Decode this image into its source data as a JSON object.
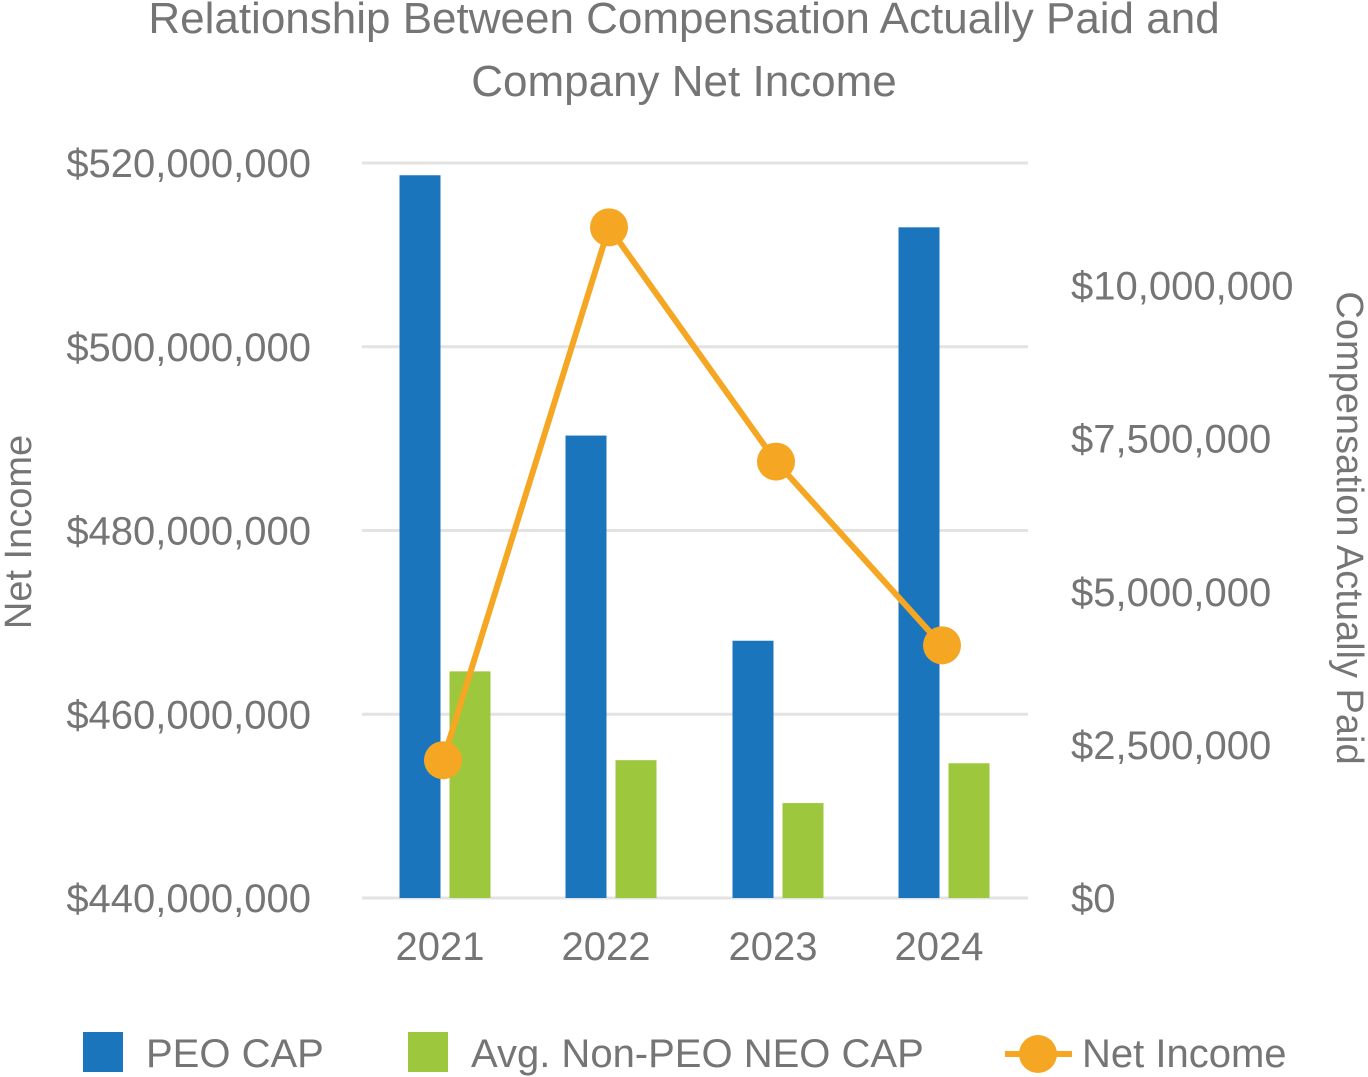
{
  "chart_data": {
    "type": "bar",
    "title_lines": [
      "Relationship Between Compensation Actually Paid and",
      "Company Net Income"
    ],
    "categories": [
      "2021",
      "2022",
      "2023",
      "2024"
    ],
    "series": [
      {
        "name": "PEO CAP",
        "type": "bar",
        "axis": "right",
        "color": "#1b75bc",
        "values": [
          11800000,
          7550000,
          4200000,
          10950000
        ]
      },
      {
        "name": "Avg. Non-PEO NEO CAP",
        "type": "bar",
        "axis": "right",
        "color": "#9dc83e",
        "values": [
          3700000,
          2250000,
          1550000,
          2200000
        ]
      },
      {
        "name": "Net Income",
        "type": "line",
        "axis": "left",
        "color": "#f5a623",
        "values": [
          455000000,
          513000000,
          487500000,
          467500000
        ]
      }
    ],
    "left_axis": {
      "label": "Net Income",
      "min": 440000000,
      "max": 520000000,
      "ticks": [
        {
          "value": 520000000,
          "label": "$520,000,000"
        },
        {
          "value": 500000000,
          "label": "$500,000,000"
        },
        {
          "value": 480000000,
          "label": "$480,000,000"
        },
        {
          "value": 460000000,
          "label": "$460,000,000"
        },
        {
          "value": 440000000,
          "label": "$440,000,000"
        }
      ]
    },
    "right_axis": {
      "label": "Compensation Actually Paid",
      "min": 0,
      "max": 12000000,
      "ticks": [
        {
          "value": 10000000,
          "label": "$10,000,000"
        },
        {
          "value": 7500000,
          "label": "$7,500,000"
        },
        {
          "value": 5000000,
          "label": "$5,000,000"
        },
        {
          "value": 2500000,
          "label": "$2,500,000"
        },
        {
          "value": 0,
          "label": "$0"
        }
      ]
    },
    "legend": {
      "position": "bottom",
      "items": [
        "PEO CAP",
        "Avg. Non-PEO NEO CAP",
        "Net Income"
      ]
    },
    "grid": true
  }
}
